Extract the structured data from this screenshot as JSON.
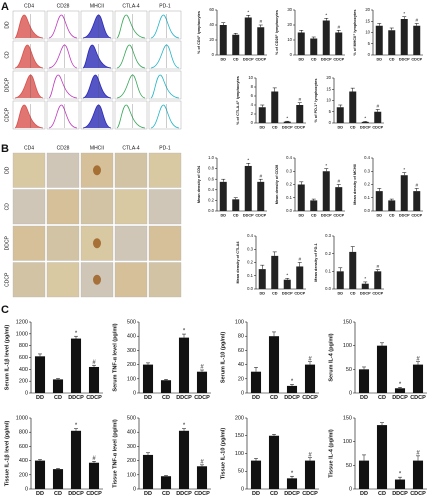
{
  "panels": {
    "A": {
      "label": "A",
      "columns": [
        "CD4",
        "CD28",
        "MHCII",
        "CTLA-4",
        "PD-1"
      ],
      "rows": [
        "DD",
        "CD",
        "DDCP",
        "CDCP"
      ]
    },
    "B": {
      "label": "B",
      "columns": [
        "CD4",
        "CD28",
        "MHCII",
        "CTLA-4",
        "PD-1"
      ],
      "rows": [
        "DD",
        "CD",
        "DDCP",
        "CDCP"
      ]
    },
    "C": {
      "label": "C"
    }
  },
  "chart_data": [
    {
      "type": "bar",
      "ylabel": "% of CD4⁺ lymphocytes",
      "categories": [
        "DD",
        "CD",
        "DDCP",
        "CDCP"
      ],
      "values": [
        40,
        27,
        50,
        37
      ],
      "errors": [
        3,
        2,
        3,
        3
      ],
      "markers": [
        null,
        null,
        "*",
        "#"
      ],
      "color": "#222222",
      "ylim": [
        0,
        60
      ],
      "yticks": [
        0,
        20,
        40,
        60
      ]
    },
    {
      "type": "bar",
      "ylabel": "% of CD28⁺ lymphocytes",
      "categories": [
        "DD",
        "CD",
        "DDCP",
        "CDCP"
      ],
      "values": [
        15,
        11,
        23,
        15
      ],
      "errors": [
        1.5,
        1,
        1.5,
        1.5
      ],
      "markers": [
        null,
        null,
        "*",
        "#"
      ],
      "color": "#222222",
      "ylim": [
        0,
        30
      ],
      "yticks": [
        0,
        10,
        20,
        30
      ]
    },
    {
      "type": "bar",
      "ylabel": "% of MHCII⁺ lymphocytes",
      "categories": [
        "DD",
        "CD",
        "DDCP",
        "CDCP"
      ],
      "values": [
        13,
        11,
        16,
        13
      ],
      "errors": [
        1,
        1,
        1,
        1
      ],
      "markers": [
        null,
        null,
        "*",
        "#"
      ],
      "color": "#222222",
      "ylim": [
        0,
        20
      ],
      "yticks": [
        0,
        5,
        10,
        15,
        20
      ]
    },
    {
      "type": "bar",
      "ylabel": "% of CTLA-4⁺ lymphocytes",
      "categories": [
        "DD",
        "CD",
        "DDCP",
        "CDCP"
      ],
      "values": [
        3.5,
        7,
        0.3,
        4
      ],
      "errors": [
        0.5,
        0.8,
        0.1,
        0.5
      ],
      "markers": [
        null,
        null,
        "*",
        "#"
      ],
      "color": "#222222",
      "ylim": [
        0,
        10
      ],
      "yticks": [
        0,
        2,
        4,
        6,
        8,
        10
      ]
    },
    {
      "type": "bar",
      "ylabel": "% of PD-1⁺ lymphocytes",
      "categories": [
        "DD",
        "CD",
        "DDCP",
        "CDCP"
      ],
      "values": [
        7,
        14,
        0.5,
        5
      ],
      "errors": [
        1,
        1.5,
        0.2,
        1
      ],
      "markers": [
        null,
        null,
        "*",
        "#"
      ],
      "color": "#222222",
      "ylim": [
        0,
        20
      ],
      "yticks": [
        0,
        5,
        10,
        15,
        20
      ]
    },
    {
      "type": "bar",
      "ylabel": "Mean density of CD4",
      "categories": [
        "DD",
        "CD",
        "DDCP",
        "CDCP"
      ],
      "values": [
        0.55,
        0.22,
        0.85,
        0.55
      ],
      "errors": [
        0.05,
        0.03,
        0.05,
        0.05
      ],
      "markers": [
        null,
        null,
        "*",
        "#"
      ],
      "color": "#222222",
      "ylim": [
        0,
        1
      ],
      "yticks": [
        {
          "value": 0,
          "label": "0.0"
        },
        {
          "value": 0.2,
          "label": "0.2"
        },
        {
          "value": 0.4,
          "label": "0.4"
        },
        {
          "value": 0.6,
          "label": "0.6"
        },
        {
          "value": 0.8,
          "label": "0.8"
        },
        {
          "value": 1,
          "label": "1.0"
        }
      ]
    },
    {
      "type": "bar",
      "ylabel": "Mean density of CD28",
      "categories": [
        "DD",
        "CD",
        "DDCP",
        "CDCP"
      ],
      "values": [
        0.2,
        0.08,
        0.3,
        0.18
      ],
      "errors": [
        0.02,
        0.01,
        0.02,
        0.02
      ],
      "markers": [
        null,
        null,
        "*",
        "#"
      ],
      "color": "#222222",
      "ylim": [
        0,
        0.4
      ],
      "yticks": [
        {
          "value": 0,
          "label": "0.0"
        },
        {
          "value": 0.1,
          "label": "0.1"
        },
        {
          "value": 0.2,
          "label": "0.2"
        },
        {
          "value": 0.3,
          "label": "0.3"
        },
        {
          "value": 0.4,
          "label": "0.4"
        }
      ]
    },
    {
      "type": "bar",
      "ylabel": "Mean density of MCHII",
      "categories": [
        "DD",
        "CD",
        "DDCP",
        "CDCP"
      ],
      "values": [
        0.15,
        0.08,
        0.27,
        0.15
      ],
      "errors": [
        0.02,
        0.01,
        0.02,
        0.02
      ],
      "markers": [
        null,
        null,
        "*",
        "#"
      ],
      "color": "#222222",
      "ylim": [
        0,
        0.4
      ],
      "yticks": [
        {
          "value": 0,
          "label": "0.0"
        },
        {
          "value": 0.1,
          "label": "0.1"
        },
        {
          "value": 0.2,
          "label": "0.2"
        },
        {
          "value": 0.3,
          "label": "0.3"
        },
        {
          "value": 0.4,
          "label": "0.4"
        }
      ]
    },
    {
      "type": "bar",
      "ylabel": "Mean density of CTLA4",
      "categories": [
        "DD",
        "CD",
        "DDCP",
        "CDCP"
      ],
      "values": [
        0.15,
        0.25,
        0.07,
        0.17
      ],
      "errors": [
        0.03,
        0.03,
        0.01,
        0.03
      ],
      "markers": [
        null,
        null,
        "*",
        "#"
      ],
      "color": "#222222",
      "ylim": [
        0,
        0.4
      ],
      "yticks": [
        {
          "value": 0,
          "label": "0.0"
        },
        {
          "value": 0.1,
          "label": "0.1"
        },
        {
          "value": 0.2,
          "label": "0.2"
        },
        {
          "value": 0.3,
          "label": "0.3"
        },
        {
          "value": 0.4,
          "label": "0.4"
        }
      ]
    },
    {
      "type": "bar",
      "ylabel": "Mean density of PD-1",
      "categories": [
        "DD",
        "CD",
        "DDCP",
        "CDCP"
      ],
      "values": [
        0.1,
        0.21,
        0.03,
        0.1
      ],
      "errors": [
        0.02,
        0.03,
        0.01,
        0.01
      ],
      "markers": [
        null,
        null,
        "*",
        "#"
      ],
      "color": "#222222",
      "ylim": [
        0,
        0.3
      ],
      "yticks": [
        {
          "value": 0,
          "label": "0.0"
        },
        {
          "value": 0.1,
          "label": "0.1"
        },
        {
          "value": 0.2,
          "label": "0.2"
        },
        {
          "value": 0.3,
          "label": "0.3"
        }
      ]
    },
    {
      "type": "bar",
      "ylabel": "Serum IL-1β level (pg/ml)",
      "categories": [
        "DD",
        "CD",
        "DDCP",
        "CDCP"
      ],
      "values": [
        620,
        230,
        920,
        440
      ],
      "errors": [
        40,
        15,
        40,
        30
      ],
      "markers": [
        null,
        null,
        "*",
        "#"
      ],
      "color": "#111111",
      "ylim": [
        0,
        1200
      ],
      "yticks": [
        0,
        200,
        400,
        600,
        800,
        1000,
        1200
      ]
    },
    {
      "type": "bar",
      "ylabel": "Serum TNF-α level (pg/ml)",
      "categories": [
        "DD",
        "CD",
        "DDCP",
        "CDCP"
      ],
      "values": [
        200,
        90,
        390,
        150
      ],
      "errors": [
        12,
        6,
        25,
        12
      ],
      "markers": [
        null,
        null,
        "*",
        "#"
      ],
      "color": "#111111",
      "ylim": [
        0,
        500
      ],
      "yticks": [
        0,
        100,
        200,
        300,
        400,
        500
      ]
    },
    {
      "type": "bar",
      "ylabel": "Serum IL-10 (pg/ml)",
      "categories": [
        "DD",
        "CD",
        "DDCP",
        "CDCP"
      ],
      "values": [
        30,
        80,
        10,
        40
      ],
      "errors": [
        6,
        6,
        2,
        4
      ],
      "markers": [
        null,
        null,
        "*",
        "#"
      ],
      "color": "#111111",
      "ylim": [
        0,
        100
      ],
      "yticks": [
        0,
        20,
        40,
        60,
        80,
        100
      ]
    },
    {
      "type": "bar",
      "ylabel": "Serum IL-4 (pg/ml)",
      "categories": [
        "DD",
        "CD",
        "DDCP",
        "CDCP"
      ],
      "values": [
        50,
        100,
        10,
        60
      ],
      "errors": [
        5,
        6,
        2,
        6
      ],
      "markers": [
        null,
        null,
        "*",
        "#"
      ],
      "color": "#111111",
      "ylim": [
        0,
        150
      ],
      "yticks": [
        0,
        50,
        100,
        150
      ]
    },
    {
      "type": "bar",
      "ylabel": "Tissue IL-1β level (pg/ml)",
      "categories": [
        "DD",
        "CD",
        "DDCP",
        "CDCP"
      ],
      "values": [
        400,
        280,
        820,
        370
      ],
      "errors": [
        15,
        10,
        30,
        20
      ],
      "markers": [
        null,
        null,
        "*",
        "#"
      ],
      "color": "#111111",
      "ylim": [
        0,
        1000
      ],
      "yticks": [
        0,
        200,
        400,
        600,
        800,
        1000
      ]
    },
    {
      "type": "bar",
      "ylabel": "Tissue TNF-α level (pg/ml)",
      "categories": [
        "DD",
        "CD",
        "DDCP",
        "CDCP"
      ],
      "values": [
        240,
        90,
        410,
        160
      ],
      "errors": [
        15,
        5,
        15,
        10
      ],
      "markers": [
        null,
        null,
        "*",
        "#"
      ],
      "color": "#111111",
      "ylim": [
        0,
        500
      ],
      "yticks": [
        0,
        100,
        200,
        300,
        400,
        500
      ]
    },
    {
      "type": "bar",
      "ylabel": "Tissue IL-10 (pg/ml)",
      "categories": [
        "DD",
        "CD",
        "DDCP",
        "CDCP"
      ],
      "values": [
        80,
        150,
        30,
        80
      ],
      "errors": [
        6,
        4,
        6,
        8
      ],
      "markers": [
        null,
        null,
        "*",
        "#"
      ],
      "color": "#111111",
      "ylim": [
        0,
        200
      ],
      "yticks": [
        0,
        50,
        100,
        150,
        200
      ]
    },
    {
      "type": "bar",
      "ylabel": "Tissue IL-4 (pg/ml)",
      "categories": [
        "DD",
        "CD",
        "DDCP",
        "CDCP"
      ],
      "values": [
        60,
        135,
        20,
        60
      ],
      "errors": [
        12,
        5,
        5,
        10
      ],
      "markers": [
        null,
        null,
        "*",
        "#"
      ],
      "color": "#111111",
      "ylim": [
        0,
        150
      ],
      "yticks": [
        0,
        50,
        100,
        150
      ]
    }
  ]
}
